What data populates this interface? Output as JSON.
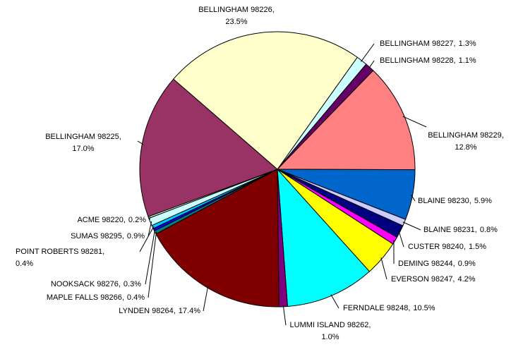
{
  "chart_data": {
    "type": "pie",
    "categories": [
      "BELLINGHAM  98227,",
      "BELLINGHAM  98228,",
      "BELLINGHAM  98229,",
      "BLAINE  98230,",
      "BLAINE  98231,",
      "CUSTER  98240,",
      "DEMING  98244,",
      "EVERSON  98247,",
      "FERNDALE  98248,",
      "LUMMI ISLAND  98262,",
      "LYNDEN  98264,",
      "MAPLE FALLS  98266,",
      "NOOKSACK  98276,",
      "POINT ROBERTS  98281,",
      "SUMAS  98295,",
      "ACME  98220,",
      "BELLINGHAM  98225,",
      "BELLINGHAM  98226,"
    ],
    "values": [
      1.3,
      1.1,
      12.8,
      5.9,
      0.8,
      1.5,
      0.9,
      4.2,
      10.5,
      1.0,
      17.4,
      0.4,
      0.3,
      0.4,
      0.9,
      0.2,
      17.0,
      23.5
    ],
    "value_labels": [
      "1.3%",
      "1.1%",
      "12.8%",
      "5.9%",
      "0.8%",
      "1.5%",
      "0.9%",
      "4.2%",
      "10.5%",
      "1.0%",
      "17.4%",
      "0.4%",
      "0.3%",
      "0.4%",
      "0.9%",
      "0.2%",
      "17.0%",
      "23.5%"
    ],
    "colors": [
      "#ccffff",
      "#660066",
      "#ff8080",
      "#0066cc",
      "#ccccff",
      "#000080",
      "#ff00ff",
      "#ffff00",
      "#00ffff",
      "#800080",
      "#800000",
      "#008080",
      "#0000ff",
      "#00ccff",
      "#ccffff",
      "#ccffcc",
      "#993366",
      "#ffffcc"
    ]
  }
}
